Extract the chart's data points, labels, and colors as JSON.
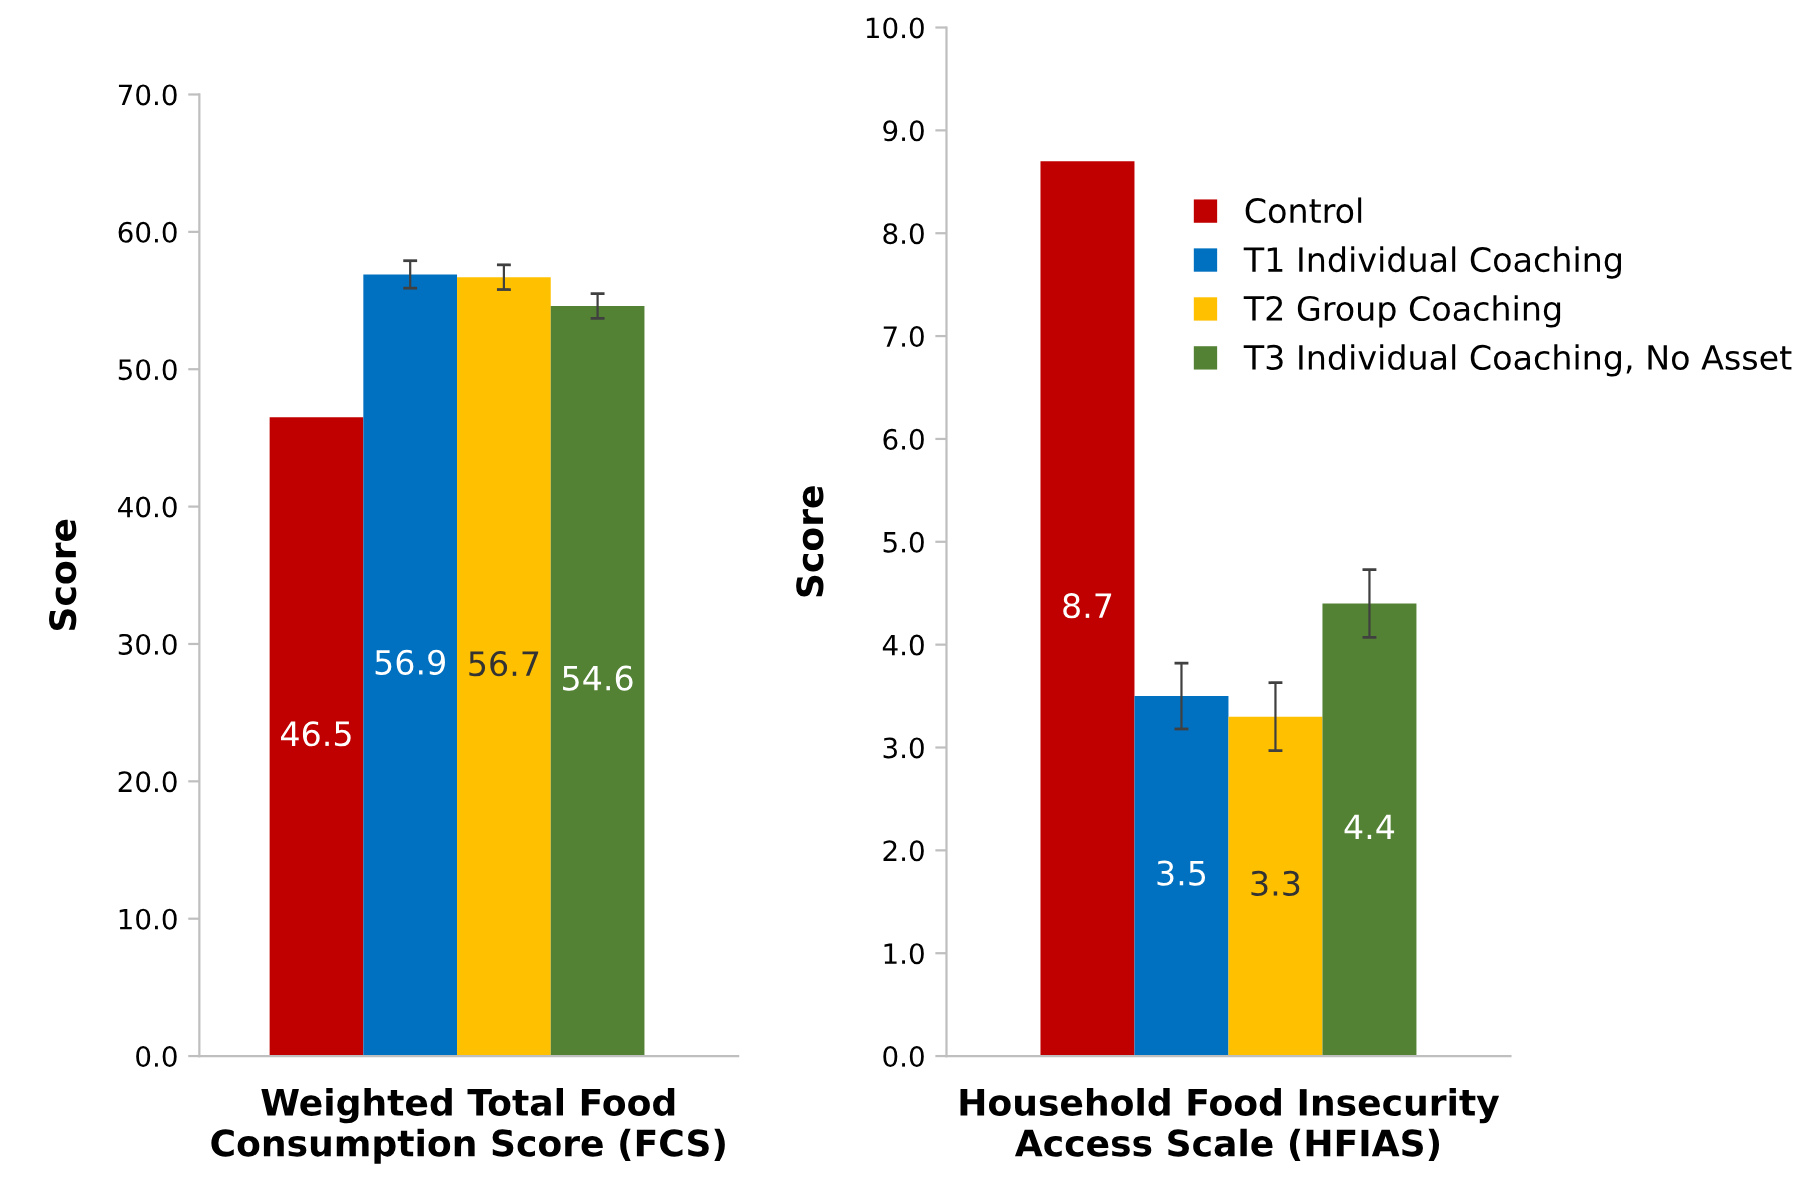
{
  "chart_data": [
    {
      "type": "bar",
      "categories": [
        null
      ],
      "xlabel": "Weighted Total Food\nConsumption Score (FCS)",
      "ylabel": "Score",
      "ylim": [
        0,
        70
      ],
      "yticks": [
        {
          "value": 0,
          "label": "0.0"
        },
        {
          "value": 10,
          "label": "10.0"
        },
        {
          "value": 20,
          "label": "20.0"
        },
        {
          "value": 30,
          "label": "30.0"
        },
        {
          "value": 40,
          "label": "40.0"
        },
        {
          "value": 50,
          "label": "50.0"
        },
        {
          "value": 60,
          "label": "60.0"
        },
        {
          "value": 70,
          "label": "70.0"
        }
      ],
      "grid": false,
      "legend": false,
      "data_labels": true,
      "series": [
        {
          "color": "#c00000",
          "values": [
            46.5
          ],
          "errors": [
            null
          ]
        },
        {
          "color": "#0070c0",
          "values": [
            56.9
          ],
          "errors": [
            1.0
          ]
        },
        {
          "color": "#ffc000",
          "values": [
            56.7
          ],
          "errors": [
            0.9
          ]
        },
        {
          "color": "#548235",
          "values": [
            54.6
          ],
          "errors": [
            0.9
          ]
        }
      ]
    },
    {
      "type": "bar",
      "categories": [
        null
      ],
      "xlabel": "Household Food Insecurity\nAccess Scale (HFIAS)",
      "ylabel": "Score",
      "ylim": [
        0,
        10
      ],
      "yticks": [
        {
          "value": 0,
          "label": "0.0"
        },
        {
          "value": 1,
          "label": "1.0"
        },
        {
          "value": 2,
          "label": "2.0"
        },
        {
          "value": 3,
          "label": "3.0"
        },
        {
          "value": 4,
          "label": "4.0"
        },
        {
          "value": 5,
          "label": "5.0"
        },
        {
          "value": 6,
          "label": "6.0"
        },
        {
          "value": 7,
          "label": "7.0"
        },
        {
          "value": 8,
          "label": "8.0"
        },
        {
          "value": 9,
          "label": "9.0"
        },
        {
          "value": 10,
          "label": "10.0"
        }
      ],
      "grid": false,
      "legend": "top right",
      "data_labels": true,
      "series": [
        {
          "name": "Control",
          "color": "#c00000",
          "values": [
            8.7
          ],
          "errors": [
            null
          ]
        },
        {
          "name": "T1 Individual Coaching",
          "color": "#0070c0",
          "values": [
            3.5
          ],
          "errors": [
            0.32
          ]
        },
        {
          "name": "T2 Group Coaching",
          "color": "#ffc000",
          "values": [
            3.3
          ],
          "errors": [
            0.33
          ]
        },
        {
          "name": "T3 Individual Coaching, No Asset",
          "color": "#548235",
          "values": [
            4.4
          ],
          "errors": [
            0.33
          ]
        }
      ]
    }
  ]
}
